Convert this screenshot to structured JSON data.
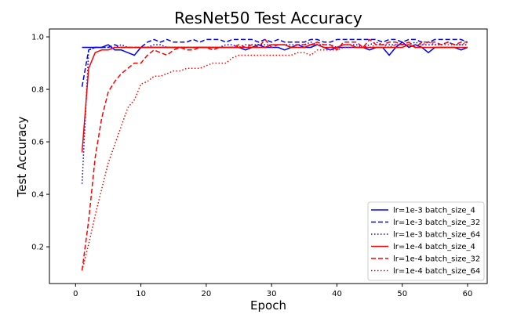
{
  "chart_data": {
    "type": "line",
    "title": "ResNet50 Test Accuracy",
    "xlabel": "Epoch",
    "ylabel": "Test Accuracy",
    "xlim": [
      -4,
      63
    ],
    "ylim": [
      0.06,
      1.03
    ],
    "xticks": [
      "0",
      "10",
      "20",
      "30",
      "40",
      "50",
      "60"
    ],
    "yticks": [
      "0.2",
      "0.4",
      "0.6",
      "0.8",
      "1.0"
    ],
    "grid": false,
    "legend_position": "lower-right",
    "series": [
      {
        "name": "lr=1e-3 batch_size_4",
        "color": "#0000ff",
        "linestyle": "solid",
        "x": [
          1,
          2,
          3,
          4,
          5,
          6,
          7,
          8,
          9,
          10,
          11,
          12,
          13,
          14,
          15,
          16,
          17,
          18,
          19,
          20,
          21,
          22,
          23,
          24,
          25,
          26,
          27,
          28,
          29,
          30,
          31,
          32,
          33,
          34,
          35,
          36,
          37,
          38,
          39,
          40,
          41,
          42,
          43,
          44,
          45,
          46,
          47,
          48,
          49,
          50,
          51,
          52,
          53,
          54,
          55,
          56,
          57,
          58,
          59,
          60
        ],
        "y": [
          0.96,
          0.96,
          0.96,
          0.96,
          0.97,
          0.95,
          0.95,
          0.94,
          0.93,
          0.96,
          0.96,
          0.96,
          0.96,
          0.96,
          0.96,
          0.96,
          0.96,
          0.96,
          0.96,
          0.96,
          0.96,
          0.96,
          0.96,
          0.96,
          0.96,
          0.95,
          0.96,
          0.97,
          0.96,
          0.96,
          0.96,
          0.95,
          0.96,
          0.97,
          0.96,
          0.96,
          0.97,
          0.96,
          0.95,
          0.96,
          0.96,
          0.96,
          0.96,
          0.96,
          0.95,
          0.96,
          0.96,
          0.93,
          0.96,
          0.98,
          0.96,
          0.97,
          0.96,
          0.94,
          0.96,
          0.96,
          0.96,
          0.96,
          0.95,
          0.96
        ]
      },
      {
        "name": "lr=1e-3 batch_size_32",
        "color": "#0000ff",
        "linestyle": "dashed",
        "x": [
          1,
          2,
          3,
          4,
          5,
          6,
          7,
          8,
          9,
          10,
          11,
          12,
          13,
          14,
          15,
          16,
          17,
          18,
          19,
          20,
          21,
          22,
          23,
          24,
          25,
          26,
          27,
          28,
          29,
          30,
          31,
          32,
          33,
          34,
          35,
          36,
          37,
          38,
          39,
          40,
          41,
          42,
          43,
          44,
          45,
          46,
          47,
          48,
          49,
          50,
          51,
          52,
          53,
          54,
          55,
          56,
          57,
          58,
          59,
          60
        ],
        "y": [
          0.81,
          0.95,
          0.96,
          0.96,
          0.96,
          0.97,
          0.96,
          0.96,
          0.96,
          0.96,
          0.98,
          0.99,
          0.98,
          0.99,
          0.98,
          0.98,
          0.98,
          0.99,
          0.98,
          0.99,
          0.99,
          0.99,
          0.98,
          0.99,
          0.99,
          0.99,
          0.99,
          0.98,
          0.99,
          0.98,
          0.99,
          0.98,
          0.98,
          0.98,
          0.98,
          0.99,
          0.99,
          0.98,
          0.98,
          0.99,
          0.99,
          0.99,
          0.99,
          0.99,
          0.99,
          0.99,
          0.98,
          0.99,
          0.99,
          0.98,
          0.99,
          0.99,
          0.98,
          0.98,
          0.99,
          0.99,
          0.99,
          0.99,
          0.99,
          0.98
        ]
      },
      {
        "name": "lr=1e-3 batch_size_64",
        "color": "#0000ff",
        "linestyle": "dotted",
        "x": [
          1,
          2,
          3,
          4,
          5,
          6,
          7,
          8,
          9,
          10,
          11,
          12,
          13,
          14,
          15,
          16,
          17,
          18,
          19,
          20,
          21,
          22,
          23,
          24,
          25,
          26,
          27,
          28,
          29,
          30,
          31,
          32,
          33,
          34,
          35,
          36,
          37,
          38,
          39,
          40,
          41,
          42,
          43,
          44,
          45,
          46,
          47,
          48,
          49,
          50,
          51,
          52,
          53,
          54,
          55,
          56,
          57,
          58,
          59,
          60
        ],
        "y": [
          0.44,
          0.95,
          0.96,
          0.96,
          0.96,
          0.96,
          0.97,
          0.96,
          0.96,
          0.96,
          0.96,
          0.97,
          0.97,
          0.96,
          0.96,
          0.96,
          0.96,
          0.96,
          0.96,
          0.96,
          0.96,
          0.96,
          0.97,
          0.97,
          0.96,
          0.97,
          0.97,
          0.97,
          0.97,
          0.97,
          0.97,
          0.97,
          0.97,
          0.97,
          0.97,
          0.98,
          0.97,
          0.97,
          0.97,
          0.96,
          0.97,
          0.97,
          0.97,
          0.96,
          0.97,
          0.98,
          0.97,
          0.97,
          0.97,
          0.97,
          0.97,
          0.98,
          0.97,
          0.97,
          0.97,
          0.97,
          0.98,
          0.97,
          0.97,
          0.97
        ]
      },
      {
        "name": "lr=1e-4 batch_size_4",
        "color": "#ff0000",
        "linestyle": "solid",
        "x": [
          1,
          2,
          3,
          4,
          5,
          6,
          7,
          8,
          9,
          10,
          11,
          12,
          13,
          14,
          15,
          16,
          17,
          18,
          19,
          20,
          21,
          22,
          23,
          24,
          25,
          26,
          27,
          28,
          29,
          30,
          31,
          32,
          33,
          34,
          35,
          36,
          37,
          38,
          39,
          40,
          41,
          42,
          43,
          44,
          45,
          46,
          47,
          48,
          49,
          50,
          51,
          52,
          53,
          54,
          55,
          56,
          57,
          58,
          59,
          60
        ],
        "y": [
          0.56,
          0.88,
          0.94,
          0.95,
          0.95,
          0.96,
          0.96,
          0.96,
          0.96,
          0.96,
          0.96,
          0.96,
          0.96,
          0.96,
          0.96,
          0.96,
          0.96,
          0.96,
          0.96,
          0.96,
          0.96,
          0.96,
          0.96,
          0.96,
          0.96,
          0.96,
          0.96,
          0.96,
          0.96,
          0.97,
          0.97,
          0.97,
          0.96,
          0.96,
          0.96,
          0.97,
          0.97,
          0.96,
          0.96,
          0.96,
          0.97,
          0.97,
          0.96,
          0.96,
          0.96,
          0.96,
          0.96,
          0.96,
          0.96,
          0.96,
          0.97,
          0.96,
          0.96,
          0.96,
          0.96,
          0.96,
          0.96,
          0.96,
          0.96,
          0.96
        ]
      },
      {
        "name": "lr=1e-4 batch_size_32",
        "color": "#ff0000",
        "linestyle": "dashed",
        "x": [
          1,
          2,
          3,
          4,
          5,
          6,
          7,
          8,
          9,
          10,
          11,
          12,
          13,
          14,
          15,
          16,
          17,
          18,
          19,
          20,
          21,
          22,
          23,
          24,
          25,
          26,
          27,
          28,
          29,
          30,
          31,
          32,
          33,
          34,
          35,
          36,
          37,
          38,
          39,
          40,
          41,
          42,
          43,
          44,
          45,
          46,
          47,
          48,
          49,
          50,
          51,
          52,
          53,
          54,
          55,
          56,
          57,
          58,
          59,
          60
        ],
        "y": [
          0.11,
          0.3,
          0.54,
          0.69,
          0.79,
          0.83,
          0.86,
          0.88,
          0.9,
          0.9,
          0.93,
          0.95,
          0.94,
          0.93,
          0.95,
          0.96,
          0.95,
          0.95,
          0.96,
          0.96,
          0.95,
          0.96,
          0.96,
          0.96,
          0.97,
          0.96,
          0.97,
          0.96,
          0.99,
          0.96,
          0.97,
          0.97,
          0.96,
          0.97,
          0.97,
          0.97,
          0.98,
          0.97,
          0.97,
          0.95,
          0.98,
          0.98,
          0.98,
          0.96,
          0.99,
          0.97,
          0.97,
          0.98,
          0.98,
          0.97,
          0.98,
          0.96,
          0.98,
          0.98,
          0.98,
          0.97,
          0.98,
          0.97,
          0.98,
          0.98
        ]
      },
      {
        "name": "lr=1e-4 batch_size_64",
        "color": "#ff0000",
        "linestyle": "dotted",
        "x": [
          1,
          2,
          3,
          4,
          5,
          6,
          7,
          8,
          9,
          10,
          11,
          12,
          13,
          14,
          15,
          16,
          17,
          18,
          19,
          20,
          21,
          22,
          23,
          24,
          25,
          26,
          27,
          28,
          29,
          30,
          31,
          32,
          33,
          34,
          35,
          36,
          37,
          38,
          39,
          40,
          41,
          42,
          43,
          44,
          45,
          46,
          47,
          48,
          49,
          50,
          51,
          52,
          53,
          54,
          55,
          56,
          57,
          58,
          59,
          60
        ],
        "y": [
          0.11,
          0.21,
          0.32,
          0.42,
          0.52,
          0.59,
          0.66,
          0.73,
          0.76,
          0.82,
          0.83,
          0.85,
          0.85,
          0.86,
          0.87,
          0.87,
          0.88,
          0.88,
          0.88,
          0.89,
          0.9,
          0.9,
          0.9,
          0.92,
          0.93,
          0.93,
          0.93,
          0.93,
          0.93,
          0.93,
          0.93,
          0.93,
          0.93,
          0.94,
          0.94,
          0.93,
          0.95,
          0.95,
          0.95,
          0.95,
          0.96,
          0.96,
          0.96,
          0.96,
          0.96,
          0.97,
          0.97,
          0.96,
          0.97,
          0.97,
          0.97,
          0.96,
          0.97,
          0.98,
          0.97,
          0.97,
          0.97,
          0.97,
          0.97,
          0.98
        ]
      }
    ]
  }
}
